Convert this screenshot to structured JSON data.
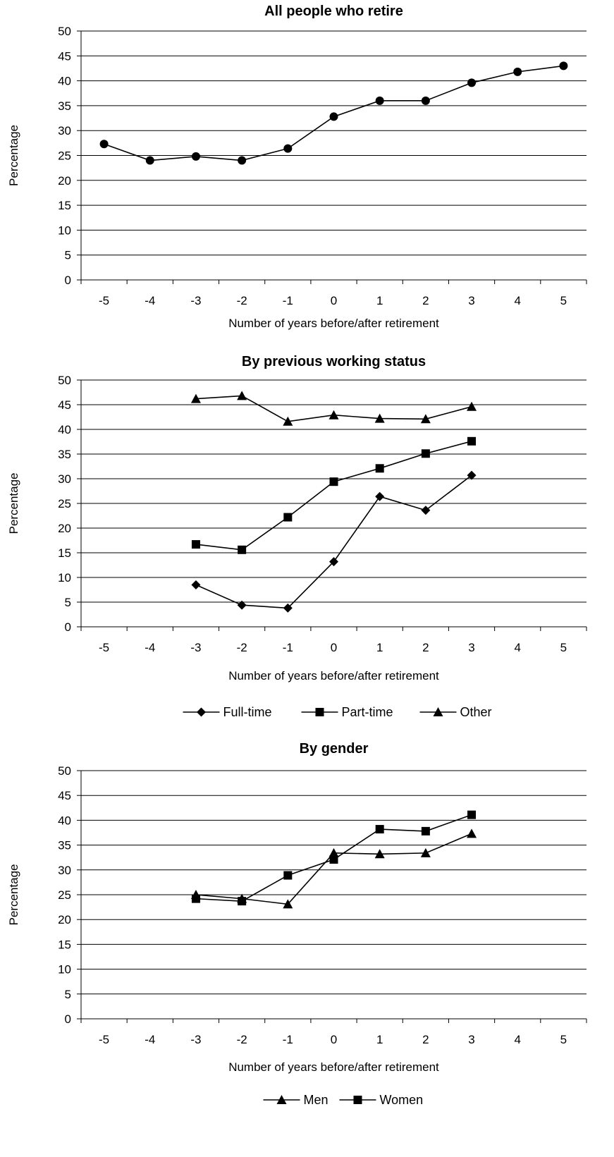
{
  "chart_data": [
    {
      "type": "line",
      "title": "All people who retire",
      "xlabel": "Number of years before/after retirement",
      "ylabel": "Percentage",
      "categories": [
        "-5",
        "-4",
        "-3",
        "-2",
        "-1",
        "0",
        "1",
        "2",
        "3",
        "4",
        "5"
      ],
      "ylim": [
        0,
        50
      ],
      "yticks": [
        "0",
        "5",
        "10",
        "15",
        "20",
        "25",
        "30",
        "35",
        "40",
        "45",
        "50"
      ],
      "grid": "horizontal",
      "legend": null,
      "series": [
        {
          "name": "",
          "marker": "circle",
          "values": [
            27.3,
            24.0,
            24.8,
            24.0,
            26.4,
            32.8,
            36.0,
            36.0,
            39.6,
            41.8,
            43.0
          ]
        }
      ]
    },
    {
      "type": "line",
      "title": "By previous working status",
      "xlabel": "Number of years before/after retirement",
      "ylabel": "Percentage",
      "categories": [
        "-5",
        "-4",
        "-3",
        "-2",
        "-1",
        "0",
        "1",
        "2",
        "3",
        "4",
        "5"
      ],
      "ylim": [
        0,
        50
      ],
      "yticks": [
        "0",
        "5",
        "10",
        "15",
        "20",
        "25",
        "30",
        "35",
        "40",
        "45",
        "50"
      ],
      "grid": "horizontal",
      "legend": "bottom",
      "series": [
        {
          "name": "Full-time",
          "marker": "diamond",
          "values": [
            null,
            null,
            8.5,
            4.4,
            3.8,
            13.2,
            26.4,
            23.6,
            30.7,
            null,
            null
          ]
        },
        {
          "name": "Part-time",
          "marker": "square",
          "values": [
            null,
            null,
            16.7,
            15.6,
            22.2,
            29.4,
            32.1,
            35.1,
            37.6,
            null,
            null
          ]
        },
        {
          "name": "Other",
          "marker": "triangle",
          "values": [
            null,
            null,
            46.2,
            46.8,
            41.6,
            42.9,
            42.2,
            42.1,
            44.6,
            null,
            null
          ]
        }
      ]
    },
    {
      "type": "line",
      "title": "By gender",
      "xlabel": "Number of years before/after retirement",
      "ylabel": "Percentage",
      "categories": [
        "-5",
        "-4",
        "-3",
        "-2",
        "-1",
        "0",
        "1",
        "2",
        "3",
        "4",
        "5"
      ],
      "ylim": [
        0,
        50
      ],
      "yticks": [
        "0",
        "5",
        "10",
        "15",
        "20",
        "25",
        "30",
        "35",
        "40",
        "45",
        "50"
      ],
      "grid": "horizontal",
      "legend": "bottom",
      "series": [
        {
          "name": "Men",
          "marker": "triangle",
          "values": [
            null,
            null,
            25.0,
            24.2,
            23.1,
            33.4,
            33.2,
            33.4,
            37.3,
            null,
            null
          ]
        },
        {
          "name": "Women",
          "marker": "square",
          "values": [
            null,
            null,
            24.2,
            23.7,
            28.9,
            32.1,
            38.2,
            37.8,
            41.1,
            null,
            null
          ]
        }
      ]
    }
  ]
}
